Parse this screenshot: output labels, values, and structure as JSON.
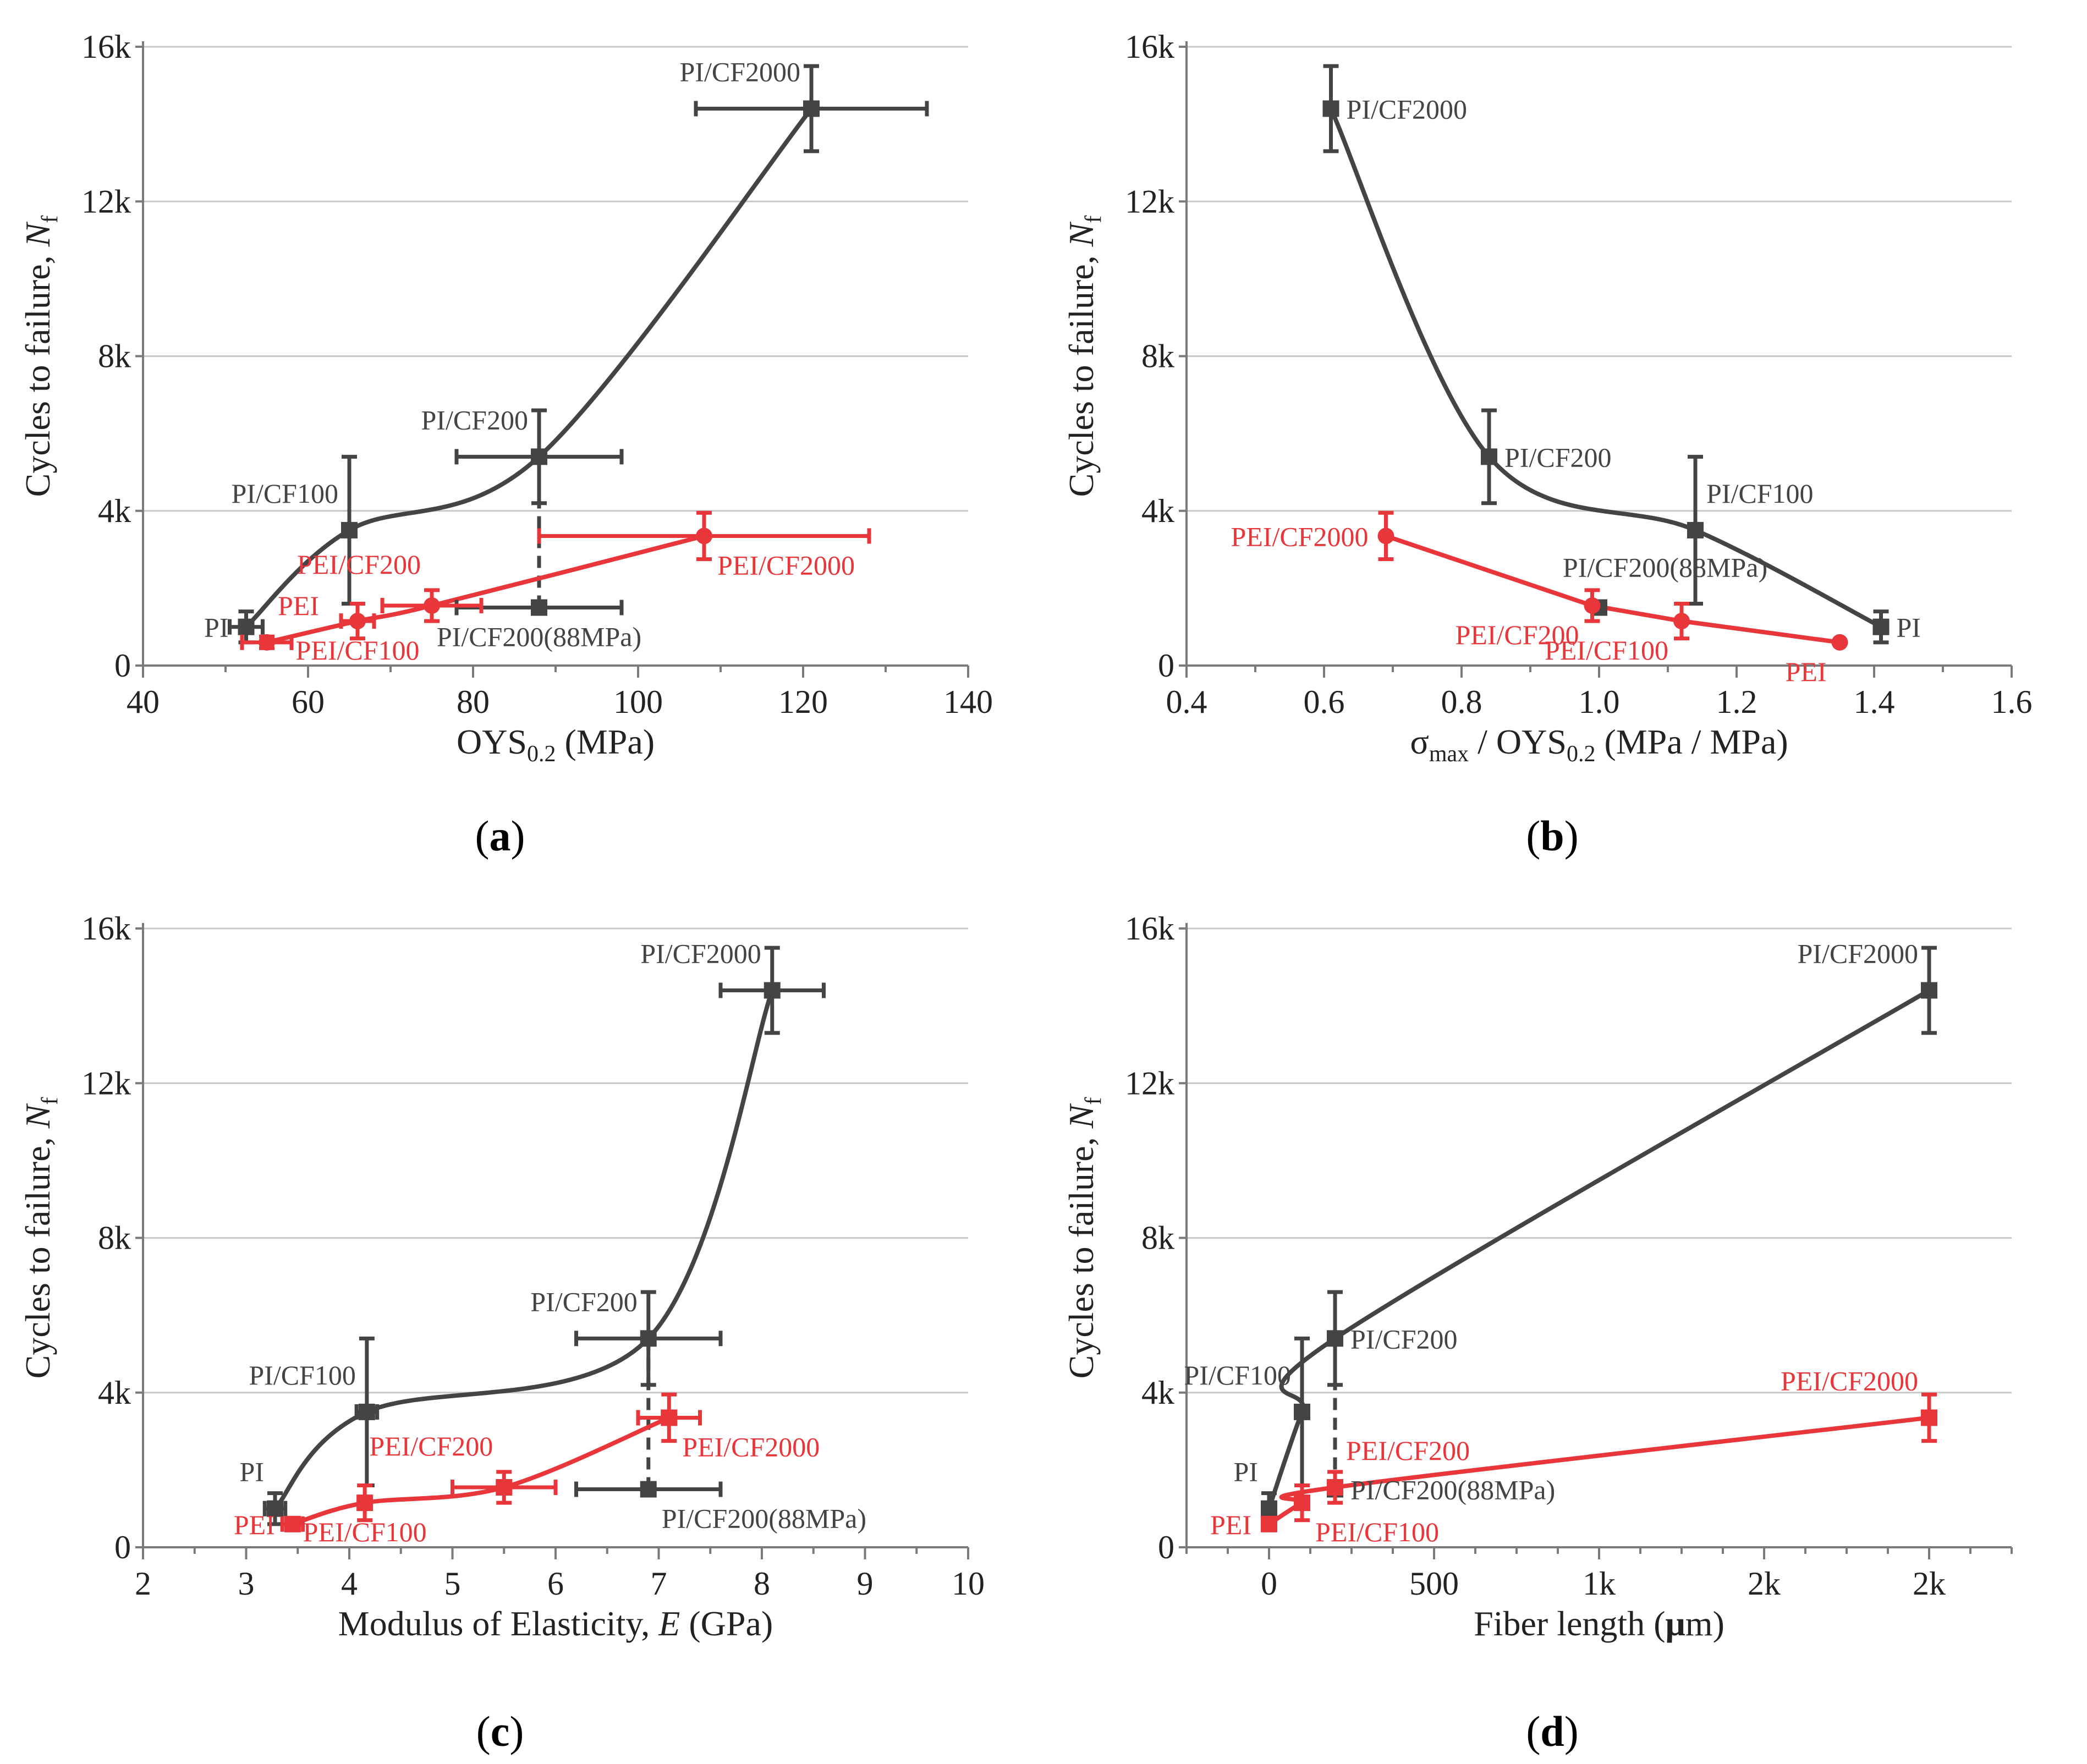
{
  "colors": {
    "pi": "#444444",
    "pei": "#e8363a"
  },
  "chart_data": [
    {
      "id": "a",
      "type": "scatter",
      "caption": "a",
      "xlabel": "OYS",
      "xlabel_sub": "0.2",
      "xlabel_tail": " (MPa)",
      "ylabel": "Cycles to failure, ",
      "ylabel_italic": "N",
      "ylabel_sub": "f",
      "xlim": [
        40,
        140
      ],
      "ylim": [
        0,
        16000
      ],
      "xticks": [
        40,
        60,
        80,
        100,
        120,
        140
      ],
      "xtick_labels": [
        "40",
        "60",
        "80",
        "100",
        "120",
        "140"
      ],
      "xminor": 10,
      "yticks": [
        0,
        4000,
        8000,
        12000,
        16000
      ],
      "ytick_labels": [
        "0",
        "4k",
        "8k",
        "12k",
        "16k"
      ],
      "series": [
        {
          "name": "PI",
          "color": "#444444",
          "marker": "square",
          "curve": true,
          "points": [
            {
              "label": "PI",
              "x": 52.5,
              "y": 1000,
              "xerr": 2,
              "yerr": 400,
              "lpos": "left"
            },
            {
              "label": "PI/CF100",
              "x": 65,
              "y": 3500,
              "xerr": 0,
              "yerr": 1900,
              "lpos": "upleft"
            },
            {
              "label": "PI/CF200",
              "x": 88,
              "y": 5400,
              "xerr": 10,
              "yerr": 1200,
              "lpos": "upleft"
            },
            {
              "label": "PI/CF2000",
              "x": 121,
              "y": 14400,
              "xerr": 14,
              "yerr": 1100,
              "lpos": "upleft"
            }
          ]
        },
        {
          "name": "PI/CF200(88MPa)",
          "color": "#444444",
          "marker": "square",
          "curve": false,
          "points": [
            {
              "label": "PI/CF200(88MPa)",
              "x": 88,
              "y": 1500,
              "xerr": 10,
              "yerr": 0,
              "lpos": "below"
            }
          ]
        },
        {
          "name": "PEI",
          "color": "#e8363a",
          "marker": "circle",
          "curve": true,
          "points": [
            {
              "label": "PEI",
              "x": 55,
              "y": 600,
              "xerr": 3,
              "yerr": 150,
              "lpos": "upright"
            },
            {
              "label": "PEI/CF100",
              "x": 66,
              "y": 1150,
              "xerr": 2,
              "yerr": 450,
              "lpos": "below"
            },
            {
              "label": "PEI/CF200",
              "x": 75,
              "y": 1550,
              "xerr": 6,
              "yerr": 400,
              "lpos": "aboveleft"
            },
            {
              "label": "PEI/CF2000",
              "x": 108,
              "y": 3350,
              "xerr": 20,
              "yerr": 600,
              "lpos": "belowright"
            }
          ]
        }
      ],
      "dashed_link": {
        "x": 88,
        "y1": 1500,
        "y2": 5400
      }
    },
    {
      "id": "b",
      "type": "scatter",
      "caption": "b",
      "xlabel": "σ",
      "xlabel_sub": "max",
      "xlabel_mid": " / OYS",
      "xlabel_sub2": "0.2",
      "xlabel_tail": " (MPa / MPa)",
      "ylabel": "Cycles to failure, ",
      "ylabel_italic": "N",
      "ylabel_sub": "f",
      "xlim": [
        0.4,
        1.6
      ],
      "ylim": [
        0,
        16000
      ],
      "xticks": [
        0.4,
        0.6,
        0.8,
        1.0,
        1.2,
        1.4,
        1.6
      ],
      "xtick_labels": [
        "0.4",
        "0.6",
        "0.8",
        "1.0",
        "1.2",
        "1.4",
        "1.6"
      ],
      "xminor": 0.1,
      "yticks": [
        0,
        4000,
        8000,
        12000,
        16000
      ],
      "ytick_labels": [
        "0",
        "4k",
        "8k",
        "12k",
        "16k"
      ],
      "series": [
        {
          "name": "PI",
          "color": "#444444",
          "marker": "square",
          "curve": true,
          "points": [
            {
              "label": "PI/CF2000",
              "x": 0.61,
              "y": 14400,
              "xerr": 0,
              "yerr": 1100,
              "lpos": "right"
            },
            {
              "label": "PI/CF200",
              "x": 0.84,
              "y": 5400,
              "xerr": 0,
              "yerr": 1200,
              "lpos": "right"
            },
            {
              "label": "PI/CF100",
              "x": 1.14,
              "y": 3500,
              "xerr": 0,
              "yerr": 1900,
              "lpos": "upright"
            },
            {
              "label": "PI",
              "x": 1.41,
              "y": 1000,
              "xerr": 0,
              "yerr": 400,
              "lpos": "right"
            }
          ]
        },
        {
          "name": "PI/CF200(88MPa)",
          "color": "#444444",
          "marker": "square",
          "curve": false,
          "points": [
            {
              "label": "PI/CF200(88MPa)",
              "x": 1.0,
              "y": 1500,
              "xerr": 0,
              "yerr": 0,
              "lpos": "aboveleft2"
            }
          ]
        },
        {
          "name": "PEI",
          "color": "#e8363a",
          "marker": "circle",
          "curve": false,
          "points": [
            {
              "label": "PEI/CF2000",
              "x": 0.69,
              "y": 3350,
              "xerr": 0,
              "yerr": 600,
              "lpos": "left"
            },
            {
              "label": "PEI/CF200",
              "x": 0.99,
              "y": 1550,
              "xerr": 0,
              "yerr": 400,
              "lpos": "belowleft"
            },
            {
              "label": "PEI/CF100",
              "x": 1.12,
              "y": 1150,
              "xerr": 0,
              "yerr": 450,
              "lpos": "belowleft"
            },
            {
              "label": "PEI",
              "x": 1.35,
              "y": 600,
              "xerr": 0,
              "yerr": 0,
              "lpos": "belowleft"
            }
          ]
        }
      ]
    },
    {
      "id": "c",
      "type": "scatter",
      "caption": "c",
      "xlabel": "Modulus of Elasticity, ",
      "xlabel_italic": "E",
      "xlabel_tail": " (GPa)",
      "ylabel": "Cycles to failure, ",
      "ylabel_italic": "N",
      "ylabel_sub": "f",
      "xlim": [
        2,
        10
      ],
      "ylim": [
        0,
        16000
      ],
      "xticks": [
        2,
        3,
        4,
        5,
        6,
        7,
        8,
        9,
        10
      ],
      "xtick_labels": [
        "2",
        "3",
        "4",
        "5",
        "6",
        "7",
        "8",
        "9",
        "10"
      ],
      "xminor": 0.5,
      "yticks": [
        0,
        4000,
        8000,
        12000,
        16000
      ],
      "ytick_labels": [
        "0",
        "4k",
        "8k",
        "12k",
        "16k"
      ],
      "series": [
        {
          "name": "PI",
          "color": "#444444",
          "marker": "square",
          "curve": true,
          "points": [
            {
              "label": "PI",
              "x": 3.28,
              "y": 1000,
              "xerr": 0.1,
              "yerr": 400,
              "lpos": "upleft"
            },
            {
              "label": "PI/CF100",
              "x": 4.17,
              "y": 3500,
              "xerr": 0.1,
              "yerr": 1900,
              "lpos": "upleft"
            },
            {
              "label": "PI/CF200",
              "x": 6.9,
              "y": 5400,
              "xerr": 0.7,
              "yerr": 1200,
              "lpos": "upleft"
            },
            {
              "label": "PI/CF2000",
              "x": 8.1,
              "y": 14400,
              "xerr": 0.5,
              "yerr": 1100,
              "lpos": "upleft"
            }
          ]
        },
        {
          "name": "PI/CF200(88MPa)",
          "color": "#444444",
          "marker": "square",
          "curve": false,
          "points": [
            {
              "label": "PI/CF200(88MPa)",
              "x": 6.9,
              "y": 1500,
              "xerr": 0.7,
              "yerr": 0,
              "lpos": "belowright"
            }
          ]
        },
        {
          "name": "PEI",
          "color": "#e8363a",
          "marker": "square",
          "curve": true,
          "points": [
            {
              "label": "PEI",
              "x": 3.45,
              "y": 600,
              "xerr": 0.1,
              "yerr": 150,
              "lpos": "left"
            },
            {
              "label": "PEI/CF100",
              "x": 4.15,
              "y": 1150,
              "xerr": 0,
              "yerr": 450,
              "lpos": "below"
            },
            {
              "label": "PEI/CF200",
              "x": 5.5,
              "y": 1550,
              "xerr": 0.5,
              "yerr": 400,
              "lpos": "aboveleft"
            },
            {
              "label": "PEI/CF2000",
              "x": 7.1,
              "y": 3350,
              "xerr": 0.3,
              "yerr": 600,
              "lpos": "belowright"
            }
          ]
        }
      ],
      "dashed_link": {
        "x": 6.9,
        "y1": 1500,
        "y2": 5400
      }
    },
    {
      "id": "d",
      "type": "scatter",
      "caption": "d",
      "xlabel": "Fiber length (",
      "xlabel_bold": "μ",
      "xlabel_tail": "m)",
      "ylabel": "Cycles to failure, ",
      "ylabel_italic": "N",
      "ylabel_sub": "f",
      "xlim": [
        -250,
        2250
      ],
      "ylim": [
        0,
        16000
      ],
      "xticks": [
        0,
        500,
        1000,
        1500,
        2000
      ],
      "xtick_labels": [
        "0",
        "500",
        "1k",
        "2k",
        "2k"
      ],
      "xminor": 125,
      "yticks": [
        0,
        4000,
        8000,
        12000,
        16000
      ],
      "ytick_labels": [
        "0",
        "4k",
        "8k",
        "12k",
        "16k"
      ],
      "series": [
        {
          "name": "PI",
          "color": "#444444",
          "marker": "square",
          "curve": true,
          "points": [
            {
              "label": "PI",
              "x": 0,
              "y": 1000,
              "xerr": 0,
              "yerr": 400,
              "lpos": "upleft"
            },
            {
              "label": "PI/CF100",
              "x": 100,
              "y": 3500,
              "xerr": 0,
              "yerr": 1900,
              "lpos": "upleft"
            },
            {
              "label": "PI/CF200",
              "x": 200,
              "y": 5400,
              "xerr": 0,
              "yerr": 1200,
              "lpos": "right"
            },
            {
              "label": "PI/CF2000",
              "x": 2000,
              "y": 14400,
              "xerr": 0,
              "yerr": 1100,
              "lpos": "upleft"
            }
          ]
        },
        {
          "name": "PI/CF200(88MPa)",
          "color": "#444444",
          "marker": "square",
          "curve": false,
          "points": [
            {
              "label": "PI/CF200(88MPa)",
              "x": 200,
              "y": 1500,
              "xerr": 0,
              "yerr": 0,
              "lpos": "right"
            }
          ]
        },
        {
          "name": "PEI",
          "color": "#e8363a",
          "marker": "square",
          "curve": true,
          "points": [
            {
              "label": "PEI",
              "x": 0,
              "y": 600,
              "xerr": 0,
              "yerr": 150,
              "lpos": "left"
            },
            {
              "label": "PEI/CF100",
              "x": 100,
              "y": 1150,
              "xerr": 0,
              "yerr": 450,
              "lpos": "belowright"
            },
            {
              "label": "PEI/CF200",
              "x": 200,
              "y": 1550,
              "xerr": 0,
              "yerr": 400,
              "lpos": "upright"
            },
            {
              "label": "PEI/CF2000",
              "x": 2000,
              "y": 3350,
              "xerr": 0,
              "yerr": 600,
              "lpos": "upleft"
            }
          ]
        }
      ],
      "dashed_link": {
        "x": 200,
        "y1": 1500,
        "y2": 5400
      }
    }
  ]
}
